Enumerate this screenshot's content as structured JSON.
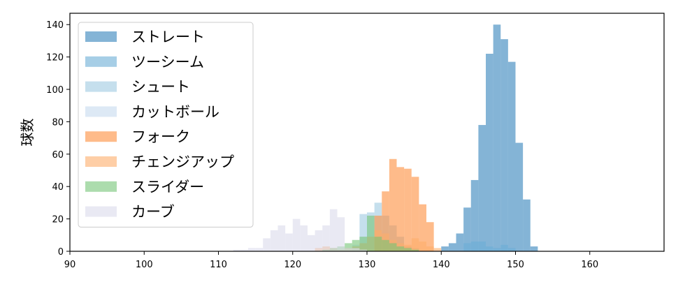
{
  "chart_data": {
    "type": "histogram",
    "title": "",
    "xlabel": "",
    "ylabel": "球数",
    "xlim": [
      90,
      170
    ],
    "ylim": [
      0,
      147
    ],
    "x_ticks": [
      90,
      100,
      110,
      120,
      130,
      140,
      150,
      160
    ],
    "y_ticks": [
      0,
      20,
      40,
      60,
      80,
      100,
      120,
      140
    ],
    "bin_width": 1.0,
    "legend_position": "upper-left",
    "series": [
      {
        "name": "ストレート",
        "color": "#1f77b4",
        "alpha": 0.55,
        "bins": [
          [
            140,
            3
          ],
          [
            141,
            5
          ],
          [
            142,
            11
          ],
          [
            143,
            27
          ],
          [
            144,
            44
          ],
          [
            145,
            78
          ],
          [
            146,
            122
          ],
          [
            147,
            140
          ],
          [
            148,
            131
          ],
          [
            149,
            117
          ],
          [
            150,
            67
          ],
          [
            151,
            32
          ],
          [
            152,
            3
          ]
        ]
      },
      {
        "name": "ツーシーム",
        "color": "#6baed6",
        "alpha": 0.6,
        "bins": [
          [
            143,
            5
          ],
          [
            144,
            6
          ],
          [
            145,
            6
          ],
          [
            146,
            3
          ],
          [
            147,
            2
          ],
          [
            148,
            4
          ],
          [
            149,
            2
          ]
        ]
      },
      {
        "name": "シュート",
        "color": "#9ecae1",
        "alpha": 0.6,
        "bins": [
          [
            129,
            23
          ],
          [
            130,
            24
          ],
          [
            131,
            30
          ],
          [
            132,
            22
          ],
          [
            133,
            16
          ],
          [
            134,
            9
          ],
          [
            135,
            3
          ],
          [
            136,
            2
          ]
        ]
      },
      {
        "name": "カットボール",
        "color": "#c6dbef",
        "alpha": 0.6,
        "bins": [
          [
            128,
            4
          ],
          [
            129,
            6
          ],
          [
            130,
            9
          ],
          [
            131,
            10
          ],
          [
            132,
            12
          ],
          [
            133,
            6
          ],
          [
            134,
            4
          ],
          [
            135,
            2
          ]
        ]
      },
      {
        "name": "フォーク",
        "color": "#fd8d3c",
        "alpha": 0.6,
        "bins": [
          [
            131,
            22
          ],
          [
            132,
            37
          ],
          [
            133,
            57
          ],
          [
            134,
            52
          ],
          [
            135,
            51
          ],
          [
            136,
            46
          ],
          [
            137,
            29
          ],
          [
            138,
            18
          ]
        ]
      },
      {
        "name": "チェンジアップ",
        "color": "#fdae6b",
        "alpha": 0.6,
        "bins": [
          [
            123,
            2
          ],
          [
            124,
            3
          ],
          [
            125,
            2
          ],
          [
            126,
            1
          ],
          [
            127,
            2
          ],
          [
            128,
            3
          ],
          [
            129,
            5
          ],
          [
            130,
            9
          ],
          [
            131,
            13
          ],
          [
            132,
            11
          ],
          [
            133,
            7
          ],
          [
            134,
            5
          ],
          [
            135,
            4
          ],
          [
            136,
            8
          ],
          [
            137,
            6
          ],
          [
            138,
            3
          ],
          [
            139,
            2
          ]
        ]
      },
      {
        "name": "スライダー",
        "color": "#74c476",
        "alpha": 0.6,
        "bins": [
          [
            124,
            1
          ],
          [
            125,
            2
          ],
          [
            126,
            3
          ],
          [
            127,
            5
          ],
          [
            128,
            7
          ],
          [
            129,
            9
          ],
          [
            130,
            22
          ],
          [
            131,
            9
          ],
          [
            132,
            7
          ],
          [
            133,
            5
          ],
          [
            134,
            3
          ],
          [
            135,
            2
          ],
          [
            136,
            1
          ]
        ]
      },
      {
        "name": "カーブ",
        "color": "#dadaeb",
        "alpha": 0.6,
        "bins": [
          [
            112,
            1
          ],
          [
            113,
            1
          ],
          [
            114,
            2
          ],
          [
            115,
            2
          ],
          [
            116,
            8
          ],
          [
            117,
            13
          ],
          [
            118,
            16
          ],
          [
            119,
            11
          ],
          [
            120,
            20
          ],
          [
            121,
            16
          ],
          [
            122,
            10
          ],
          [
            123,
            13
          ],
          [
            124,
            16
          ],
          [
            125,
            26
          ],
          [
            126,
            21
          ],
          [
            127,
            2
          ],
          [
            128,
            2
          ],
          [
            129,
            1
          ]
        ]
      }
    ]
  }
}
